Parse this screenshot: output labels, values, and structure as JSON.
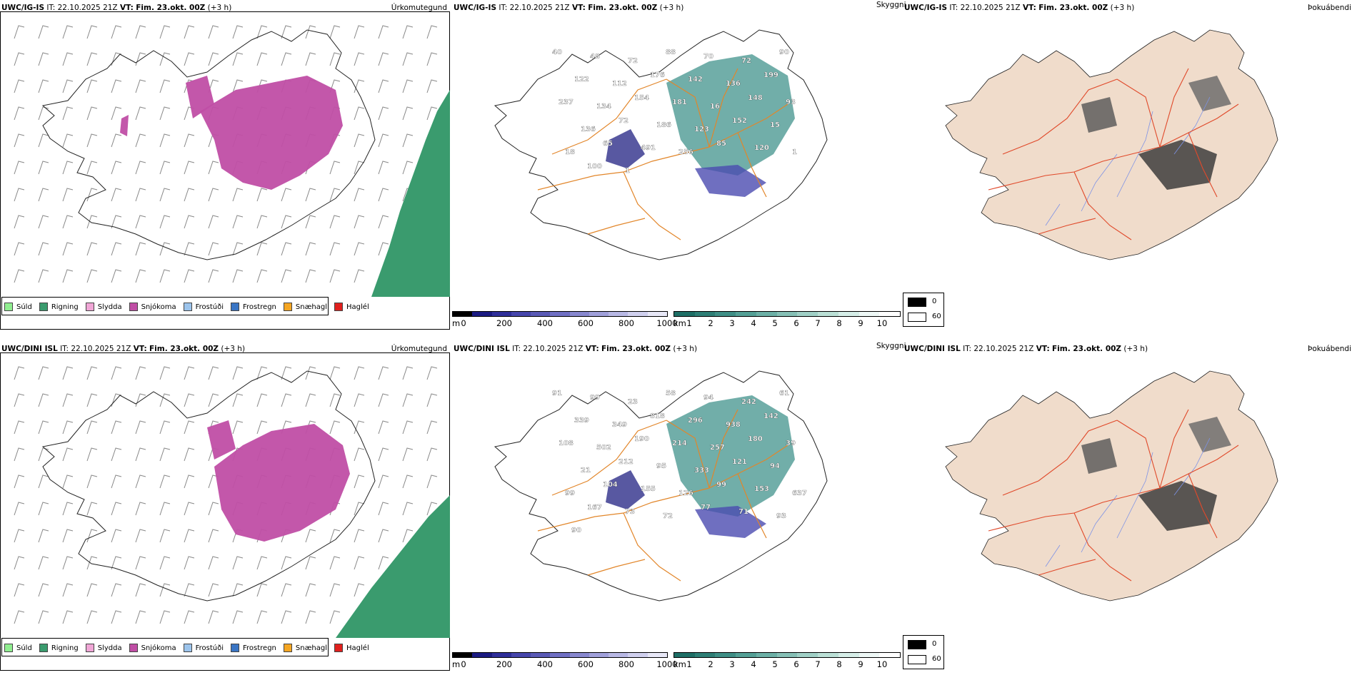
{
  "rows": [
    {
      "precip": {
        "model": "UWC/IG-IS",
        "it_label": "IT:",
        "it_value": "22.10.2025 21Z",
        "vt_label": "VT:",
        "vt_value": "Fim. 23.okt. 00Z",
        "lead": "(+3 h)",
        "kind": "Úrkomutegund"
      },
      "cloud": {
        "model": "UWC/IG-IS",
        "it_label": "IT:",
        "it_value": "22.10.2025 21Z",
        "vt_label": "VT:",
        "vt_value": "Fim. 23.okt. 00Z",
        "lead": "(+3 h)",
        "kind": "Skyggni"
      },
      "fog": {
        "kind": "Þokuábendi"
      },
      "cloud_labels": [
        "40",
        "48",
        "72",
        "88",
        "70",
        "72",
        "90",
        "122",
        "112",
        "176",
        "142",
        "136",
        "199",
        "237",
        "134",
        "154",
        "181",
        "16",
        "148",
        "93",
        "136",
        "72",
        "186",
        "123",
        "152",
        "15",
        "18",
        "65",
        "491",
        "256",
        "85",
        "120",
        "1",
        "100",
        "1"
      ]
    },
    {
      "precip": {
        "model": "UWC/DINI ISL",
        "it_label": "IT:",
        "it_value": "22.10.2025 21Z",
        "vt_label": "VT:",
        "vt_value": "Fim. 23.okt. 00Z",
        "lead": "(+3 h)",
        "kind": "Úrkomutegund"
      },
      "cloud": {
        "model": "UWC/DINI ISL",
        "it_label": "IT:",
        "it_value": "22.10.2025 21Z",
        "vt_label": "VT:",
        "vt_value": "Fim. 23.okt. 00Z",
        "lead": "(+3 h)",
        "kind": "Skyggni"
      },
      "fog": {
        "kind": "Þokuábendi"
      },
      "cloud_labels": [
        "91",
        "99",
        "23",
        "58",
        "94",
        "242",
        "61",
        "339",
        "349",
        "818",
        "296",
        "938",
        "142",
        "108",
        "502",
        "190",
        "214",
        "257",
        "180",
        "39",
        "21",
        "212",
        "95",
        "333",
        "121",
        "94",
        "99",
        "104",
        "155",
        "126",
        "99",
        "153",
        "637",
        "167",
        "73",
        "72",
        "77",
        "71",
        "93",
        "90"
      ]
    }
  ],
  "precip_legend": [
    {
      "label": "Súld",
      "color": "#90ee90"
    },
    {
      "label": "Rigning",
      "color": "#3a9b6e"
    },
    {
      "label": "Slydda",
      "color": "#f0a6d6"
    },
    {
      "label": "Snjókoma",
      "color": "#c04ea5"
    },
    {
      "label": "Frostúði",
      "color": "#9cc4ec"
    },
    {
      "label": "Frostregn",
      "color": "#3a75c4"
    },
    {
      "label": "Snæhagl",
      "color": "#f5a623"
    },
    {
      "label": "Haglél",
      "color": "#e0201e"
    }
  ],
  "height_bar": {
    "unit": "m",
    "ticks": [
      "0",
      "200",
      "400",
      "600",
      "800",
      "1000"
    ]
  },
  "vis_bar": {
    "unit": "km",
    "ticks": [
      "1",
      "2",
      "3",
      "4",
      "5",
      "6",
      "7",
      "8",
      "9",
      "10"
    ]
  },
  "fog_legend": {
    "dark": "0",
    "light": "60"
  }
}
